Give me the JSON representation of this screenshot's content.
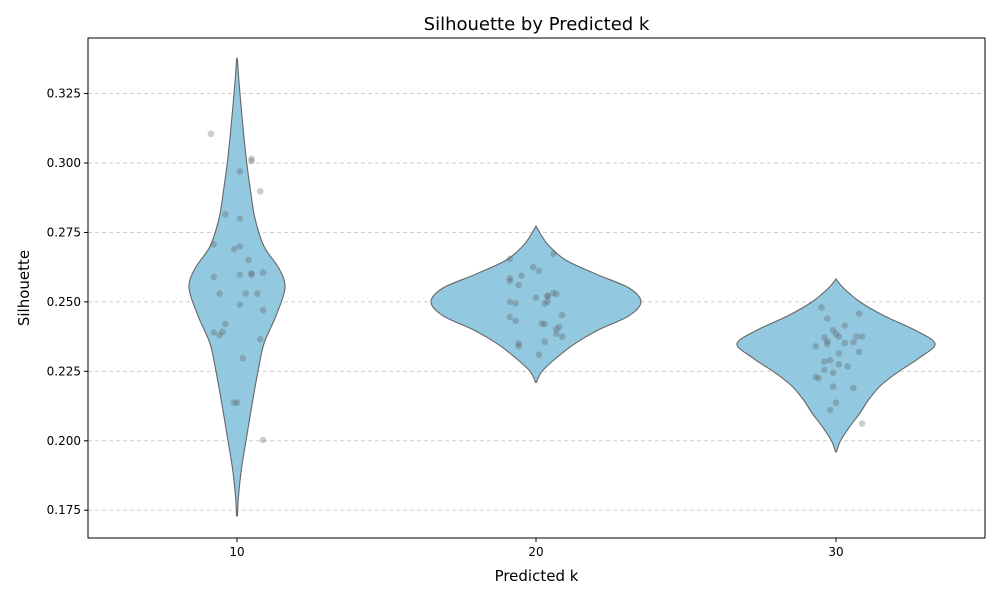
{
  "chart_data": {
    "type": "violin",
    "title": "Silhouette by Predicted k",
    "xlabel": "Predicted k",
    "ylabel": "Silhouette",
    "categories": [
      "10",
      "20",
      "30"
    ],
    "ylim": [
      0.165,
      0.345
    ],
    "yticks": [
      "0.175",
      "0.200",
      "0.225",
      "0.250",
      "0.275",
      "0.300",
      "0.325"
    ],
    "grid": true,
    "violin_color": "#92c9e0",
    "edge_color": "#666666",
    "point_color": "#555555",
    "groups": [
      {
        "category": "10",
        "range": [
          0.173,
          0.337
        ],
        "density": [
          [
            0.173,
            0.003
          ],
          [
            0.18,
            0.01
          ],
          [
            0.19,
            0.03
          ],
          [
            0.2,
            0.06
          ],
          [
            0.213,
            0.1
          ],
          [
            0.225,
            0.14
          ],
          [
            0.235,
            0.18
          ],
          [
            0.245,
            0.26
          ],
          [
            0.255,
            0.32
          ],
          [
            0.262,
            0.28
          ],
          [
            0.27,
            0.18
          ],
          [
            0.28,
            0.12
          ],
          [
            0.29,
            0.09
          ],
          [
            0.3,
            0.065
          ],
          [
            0.31,
            0.045
          ],
          [
            0.32,
            0.028
          ],
          [
            0.33,
            0.012
          ],
          [
            0.337,
            0.003
          ]
        ],
        "points": [
          [
            -0.09,
            0.3105
          ],
          [
            0.05,
            0.3015
          ],
          [
            0.05,
            0.3007
          ],
          [
            0.08,
            0.2898
          ],
          [
            0.01,
            0.297
          ],
          [
            -0.04,
            0.2815
          ],
          [
            0.01,
            0.28
          ],
          [
            -0.08,
            0.2707
          ],
          [
            0.01,
            0.27
          ],
          [
            -0.01,
            0.269
          ],
          [
            0.04,
            0.265
          ],
          [
            -0.08,
            0.259
          ],
          [
            0.01,
            0.2598
          ],
          [
            0.05,
            0.2603
          ],
          [
            0.05,
            0.2598
          ],
          [
            0.09,
            0.2605
          ],
          [
            -0.06,
            0.253
          ],
          [
            0.03,
            0.253
          ],
          [
            0.07,
            0.253
          ],
          [
            0.01,
            0.249
          ],
          [
            0.09,
            0.247
          ],
          [
            -0.04,
            0.242
          ],
          [
            -0.08,
            0.239
          ],
          [
            -0.06,
            0.238
          ],
          [
            -0.05,
            0.2392
          ],
          [
            0.08,
            0.2365
          ],
          [
            0.02,
            0.2297
          ],
          [
            -0.01,
            0.2137
          ],
          [
            0.0,
            0.2137
          ],
          [
            0.09,
            0.2003
          ]
        ]
      },
      {
        "category": "20",
        "range": [
          0.221,
          0.277
        ],
        "density": [
          [
            0.221,
            0.003
          ],
          [
            0.225,
            0.04
          ],
          [
            0.23,
            0.14
          ],
          [
            0.235,
            0.26
          ],
          [
            0.24,
            0.42
          ],
          [
            0.245,
            0.62
          ],
          [
            0.25,
            0.7
          ],
          [
            0.255,
            0.62
          ],
          [
            0.26,
            0.4
          ],
          [
            0.265,
            0.2
          ],
          [
            0.27,
            0.09
          ],
          [
            0.274,
            0.035
          ],
          [
            0.277,
            0.003
          ]
        ],
        "points": [
          [
            0.06,
            0.2673
          ],
          [
            -0.09,
            0.2655
          ],
          [
            -0.01,
            0.2625
          ],
          [
            0.01,
            0.2612
          ],
          [
            -0.05,
            0.2595
          ],
          [
            -0.09,
            0.2585
          ],
          [
            -0.09,
            0.2575
          ],
          [
            -0.06,
            0.256
          ],
          [
            0.06,
            0.2532
          ],
          [
            0.07,
            0.2528
          ],
          [
            0.04,
            0.2522
          ],
          [
            0.0,
            0.2515
          ],
          [
            0.04,
            0.252
          ],
          [
            -0.09,
            0.25
          ],
          [
            -0.07,
            0.2495
          ],
          [
            0.04,
            0.25
          ],
          [
            0.03,
            0.2495
          ],
          [
            0.09,
            0.2452
          ],
          [
            -0.09,
            0.2445
          ],
          [
            -0.07,
            0.2432
          ],
          [
            0.02,
            0.2422
          ],
          [
            0.03,
            0.242
          ],
          [
            0.08,
            0.241
          ],
          [
            0.07,
            0.2402
          ],
          [
            0.07,
            0.2385
          ],
          [
            0.09,
            0.2375
          ],
          [
            0.03,
            0.2357
          ],
          [
            -0.06,
            0.235
          ],
          [
            -0.06,
            0.234
          ],
          [
            0.01,
            0.231
          ]
        ]
      },
      {
        "category": "30",
        "range": [
          0.196,
          0.258
        ],
        "density": [
          [
            0.196,
            0.003
          ],
          [
            0.2,
            0.03
          ],
          [
            0.205,
            0.09
          ],
          [
            0.21,
            0.16
          ],
          [
            0.215,
            0.22
          ],
          [
            0.22,
            0.3
          ],
          [
            0.225,
            0.42
          ],
          [
            0.23,
            0.56
          ],
          [
            0.235,
            0.66
          ],
          [
            0.24,
            0.52
          ],
          [
            0.245,
            0.32
          ],
          [
            0.25,
            0.16
          ],
          [
            0.255,
            0.05
          ],
          [
            0.258,
            0.003
          ]
        ],
        "points": [
          [
            -0.05,
            0.248
          ],
          [
            0.08,
            0.2458
          ],
          [
            -0.03,
            0.244
          ],
          [
            0.03,
            0.2415
          ],
          [
            -0.01,
            0.2398
          ],
          [
            0.0,
            0.2385
          ],
          [
            -0.04,
            0.2372
          ],
          [
            0.01,
            0.2375
          ],
          [
            0.07,
            0.2375
          ],
          [
            0.09,
            0.2375
          ],
          [
            -0.03,
            0.2358
          ],
          [
            -0.03,
            0.2348
          ],
          [
            0.03,
            0.2352
          ],
          [
            0.06,
            0.2355
          ],
          [
            -0.07,
            0.234
          ],
          [
            0.08,
            0.232
          ],
          [
            0.01,
            0.2315
          ],
          [
            -0.04,
            0.2285
          ],
          [
            -0.02,
            0.229
          ],
          [
            0.01,
            0.2275
          ],
          [
            0.04,
            0.2268
          ],
          [
            -0.04,
            0.2255
          ],
          [
            -0.01,
            0.2245
          ],
          [
            -0.07,
            0.223
          ],
          [
            -0.06,
            0.2225
          ],
          [
            -0.01,
            0.2195
          ],
          [
            0.06,
            0.219
          ],
          [
            0.0,
            0.2137
          ],
          [
            -0.02,
            0.211
          ],
          [
            0.09,
            0.2062
          ]
        ]
      }
    ]
  }
}
